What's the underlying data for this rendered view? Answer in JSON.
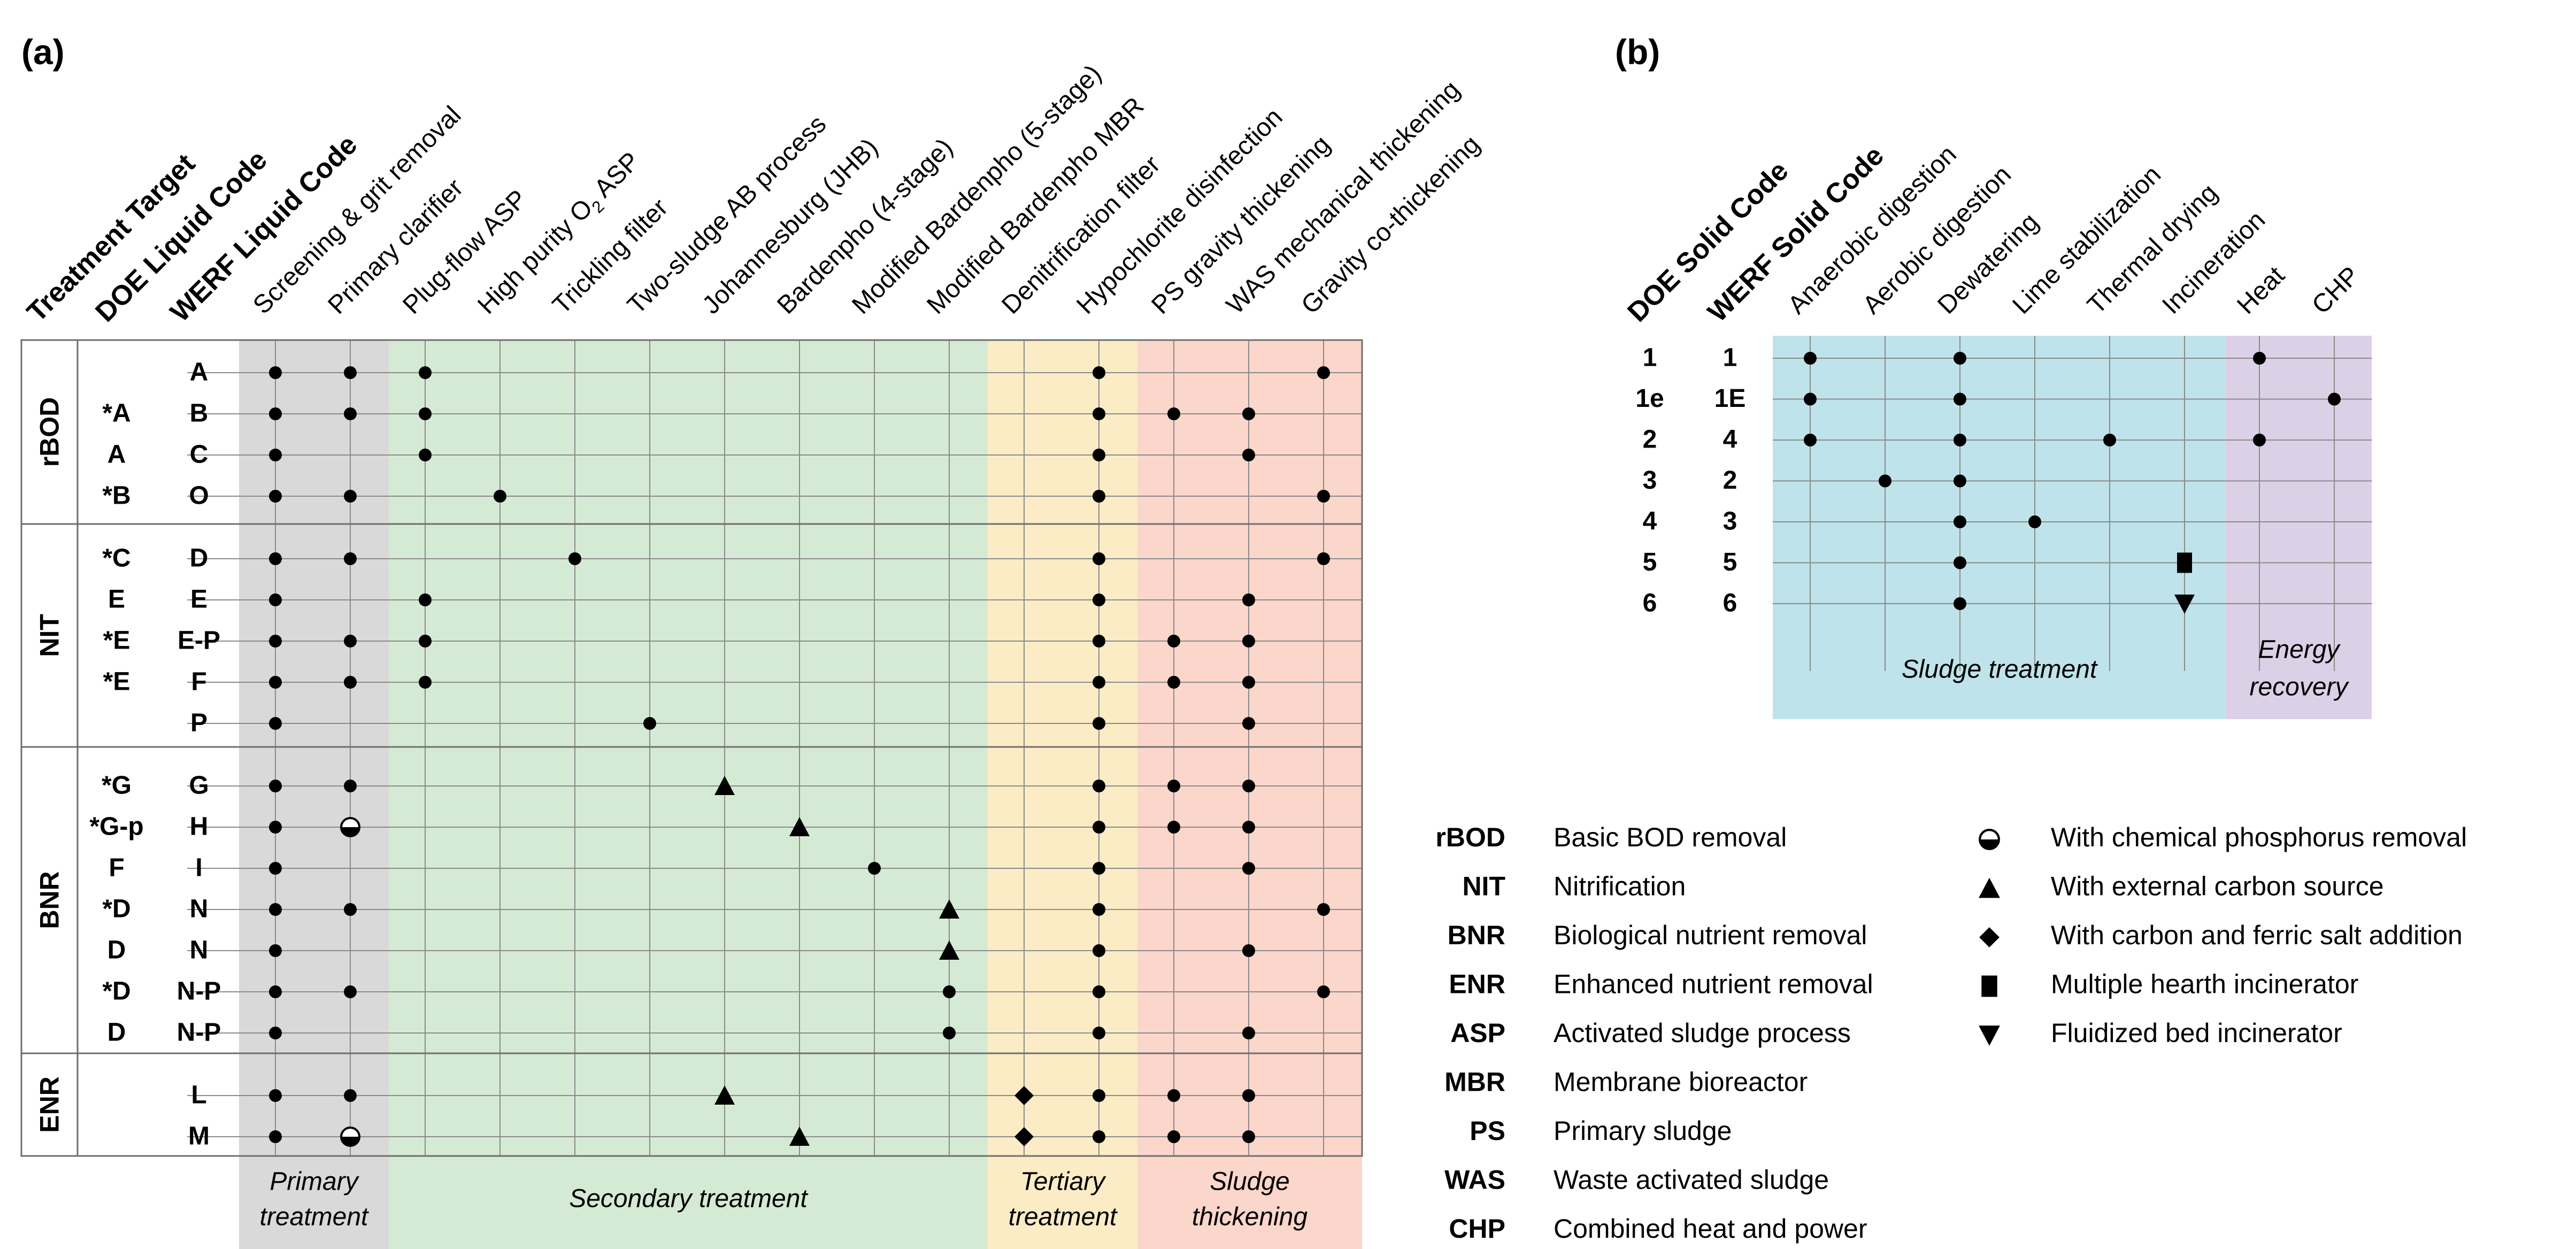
{
  "panel_a": {
    "panel_label": "(a)",
    "header_labels": [
      "Treatment Target",
      "DOE Liquid Code",
      "WERF Liquid Code"
    ],
    "columns": [
      "Screening & grit removal",
      "Primary clarifier",
      "Plug-flow ASP",
      "High purity O2 ASP",
      "Trickling filter",
      "Two-sludge AB process",
      "Johannesburg (JHB)",
      "Bardenpho (4-stage)",
      "Modified Bardenpho (5-stage)",
      "Modified Bardenpho MBR",
      "Denitrification filter",
      "Hypochlorite disinfection",
      "PS gravity thickening",
      "WAS mechanical thickening",
      "Gravity co-thickening"
    ],
    "bands": [
      {
        "label": [
          "Primary",
          "treatment"
        ],
        "color": "#d9d9d9"
      },
      {
        "label": [
          "Secondary treatment"
        ],
        "color": "#d5ead4"
      },
      {
        "label": [
          "Tertiary",
          "treatment"
        ],
        "color": "#fcecc6"
      },
      {
        "label": [
          "Sludge",
          "thickening"
        ],
        "color": "#fbd6cb"
      }
    ],
    "groups": [
      {
        "name": "rBOD",
        "rows": [
          {
            "doe": "",
            "werf": "A",
            "marks": {
              "0": "dot",
              "1": "dot",
              "2": "dot",
              "11": "dot",
              "14": "dot"
            }
          },
          {
            "doe": "*A",
            "werf": "B",
            "marks": {
              "0": "dot",
              "1": "dot",
              "2": "dot",
              "11": "dot",
              "12": "dot",
              "13": "dot"
            }
          },
          {
            "doe": "A",
            "werf": "C",
            "marks": {
              "0": "dot",
              "2": "dot",
              "11": "dot",
              "13": "dot"
            }
          },
          {
            "doe": "*B",
            "werf": "O",
            "marks": {
              "0": "dot",
              "1": "dot",
              "3": "dot",
              "11": "dot",
              "14": "dot"
            }
          }
        ]
      },
      {
        "name": "NIT",
        "rows": [
          {
            "doe": "*C",
            "werf": "D",
            "marks": {
              "0": "dot",
              "1": "dot",
              "4": "dot",
              "11": "dot",
              "14": "dot"
            }
          },
          {
            "doe": "E",
            "werf": "E",
            "marks": {
              "0": "dot",
              "2": "dot",
              "11": "dot",
              "13": "dot"
            }
          },
          {
            "doe": "*E",
            "werf": "E-P",
            "marks": {
              "0": "dot",
              "1": "dot",
              "2": "dot",
              "11": "dot",
              "12": "dot",
              "13": "dot"
            }
          },
          {
            "doe": "*E",
            "werf": "F",
            "marks": {
              "0": "dot",
              "1": "dot",
              "2": "dot",
              "11": "dot",
              "12": "dot",
              "13": "dot"
            }
          },
          {
            "doe": "",
            "werf": "P",
            "marks": {
              "0": "dot",
              "5": "dot",
              "11": "dot",
              "13": "dot"
            }
          }
        ]
      },
      {
        "name": "BNR",
        "rows": [
          {
            "doe": "*G",
            "werf": "G",
            "marks": {
              "0": "dot",
              "1": "dot",
              "6": "triangle",
              "11": "dot",
              "12": "dot",
              "13": "dot"
            }
          },
          {
            "doe": "*G-p",
            "werf": "H",
            "marks": {
              "0": "dot",
              "1": "halfcircle",
              "7": "triangle",
              "11": "dot",
              "12": "dot",
              "13": "dot"
            }
          },
          {
            "doe": "F",
            "werf": "I",
            "marks": {
              "0": "dot",
              "8": "dot",
              "11": "dot",
              "13": "dot"
            }
          },
          {
            "doe": "*D",
            "werf": "N",
            "marks": {
              "0": "dot",
              "1": "dot",
              "9": "triangle",
              "11": "dot",
              "14": "dot"
            }
          },
          {
            "doe": "D",
            "werf": "N",
            "marks": {
              "0": "dot",
              "9": "triangle",
              "11": "dot",
              "13": "dot"
            }
          },
          {
            "doe": "*D",
            "werf": "N-P",
            "marks": {
              "0": "dot",
              "1": "dot",
              "9": "dot",
              "11": "dot",
              "14": "dot"
            }
          },
          {
            "doe": "D",
            "werf": "N-P",
            "marks": {
              "0": "dot",
              "9": "dot",
              "11": "dot",
              "13": "dot"
            }
          }
        ]
      },
      {
        "name": "ENR",
        "rows": [
          {
            "doe": "",
            "werf": "L",
            "marks": {
              "0": "dot",
              "1": "dot",
              "6": "triangle",
              "10": "diamond",
              "11": "dot",
              "12": "dot",
              "13": "dot"
            }
          },
          {
            "doe": "",
            "werf": "M",
            "marks": {
              "0": "dot",
              "1": "halfcircle",
              "7": "triangle",
              "10": "diamond",
              "11": "dot",
              "12": "dot",
              "13": "dot"
            }
          }
        ]
      }
    ]
  },
  "panel_b": {
    "panel_label": "(b)",
    "header_labels": [
      "DOE Solid Code",
      "WERF Solid Code"
    ],
    "columns": [
      "Anaerobic digestion",
      "Aerobic digestion",
      "Dewatering",
      "Lime stabilization",
      "Thermal drying",
      "Incineration",
      "Heat",
      "CHP"
    ],
    "bands": [
      {
        "label": [
          "Sludge treatment"
        ],
        "color": "#bfe3ea"
      },
      {
        "label": [
          "Energy",
          "recovery"
        ],
        "color": "#dcd0e6"
      }
    ],
    "rows": [
      {
        "doe": "1",
        "werf": "1",
        "marks": {
          "0": "dot",
          "2": "dot",
          "6": "dot"
        }
      },
      {
        "doe": "1e",
        "werf": "1E",
        "marks": {
          "0": "dot",
          "2": "dot",
          "7": "dot"
        }
      },
      {
        "doe": "2",
        "werf": "4",
        "marks": {
          "0": "dot",
          "2": "dot",
          "4": "dot",
          "6": "dot"
        }
      },
      {
        "doe": "3",
        "werf": "2",
        "marks": {
          "1": "dot",
          "2": "dot"
        }
      },
      {
        "doe": "4",
        "werf": "3",
        "marks": {
          "2": "dot",
          "3": "dot"
        }
      },
      {
        "doe": "5",
        "werf": "5",
        "marks": {
          "2": "dot",
          "5": "square"
        }
      },
      {
        "doe": "6",
        "werf": "6",
        "marks": {
          "2": "dot",
          "5": "invtriangle"
        }
      }
    ]
  },
  "legend_abbreviations": [
    {
      "abbr": "rBOD",
      "text": "Basic BOD removal"
    },
    {
      "abbr": "NIT",
      "text": "Nitrification"
    },
    {
      "abbr": "BNR",
      "text": "Biological nutrient removal"
    },
    {
      "abbr": "ENR",
      "text": "Enhanced nutrient removal"
    },
    {
      "abbr": "ASP",
      "text": "Activated sludge process"
    },
    {
      "abbr": "MBR",
      "text": "Membrane bioreactor"
    },
    {
      "abbr": "PS",
      "text": "Primary sludge"
    },
    {
      "abbr": "WAS",
      "text": "Waste activated sludge"
    },
    {
      "abbr": "CHP",
      "text": "Combined heat and power"
    }
  ],
  "legend_symbols": [
    {
      "symbol": "halfcircle",
      "text": "With chemical phosphorus removal"
    },
    {
      "symbol": "triangle",
      "text": "With external carbon source"
    },
    {
      "symbol": "diamond",
      "text": "With carbon and ferric salt addition"
    },
    {
      "symbol": "square",
      "text": "Multiple hearth incinerator"
    },
    {
      "symbol": "invtriangle",
      "text": "Fluidized bed incinerator"
    }
  ]
}
